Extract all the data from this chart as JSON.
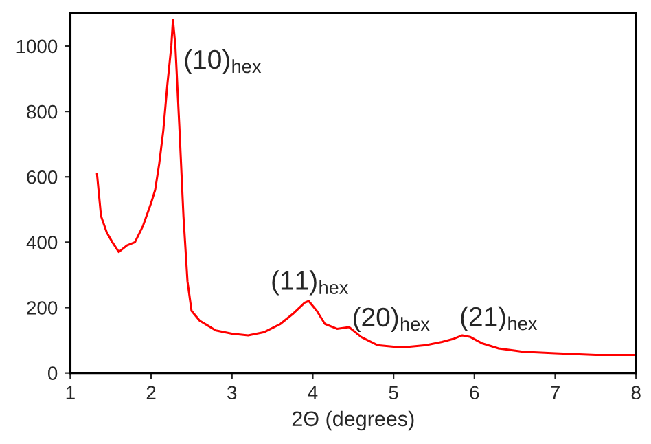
{
  "chart_data": {
    "type": "line",
    "xlabel": "2Θ (degrees)",
    "x": [
      1.33,
      1.38,
      1.45,
      1.52,
      1.6,
      1.7,
      1.8,
      1.9,
      2.0,
      2.05,
      2.1,
      2.15,
      2.2,
      2.25,
      2.27,
      2.3,
      2.35,
      2.4,
      2.45,
      2.5,
      2.6,
      2.7,
      2.8,
      3.0,
      3.2,
      3.4,
      3.6,
      3.75,
      3.9,
      3.95,
      4.05,
      4.15,
      4.3,
      4.45,
      4.6,
      4.8,
      5.0,
      5.2,
      5.4,
      5.6,
      5.75,
      5.85,
      5.95,
      6.1,
      6.3,
      6.6,
      7.0,
      7.5,
      8.0
    ],
    "series": [
      {
        "color": "#ff0000",
        "values": [
          610,
          480,
          430,
          400,
          370,
          390,
          400,
          450,
          520,
          560,
          640,
          740,
          880,
          1000,
          1080,
          1000,
          750,
          480,
          280,
          190,
          160,
          145,
          130,
          120,
          115,
          125,
          150,
          180,
          215,
          220,
          190,
          150,
          135,
          140,
          110,
          85,
          80,
          80,
          85,
          95,
          105,
          115,
          110,
          90,
          75,
          65,
          60,
          55,
          55
        ]
      }
    ],
    "xlim": [
      1,
      8
    ],
    "xticks": [
      1,
      2,
      3,
      4,
      5,
      6,
      7,
      8
    ],
    "ylim": [
      0,
      1100
    ],
    "yticks": [
      0,
      200,
      400,
      600,
      800,
      1000
    ],
    "grid": false,
    "legend": false,
    "marker": "none",
    "line_style": "solid",
    "annotations": [
      {
        "text": "(10)$_{hex}$",
        "x": 2.27,
        "y": 1080
      },
      {
        "text": "(11)$_{hex}$",
        "x": 3.95,
        "y": 220
      },
      {
        "text": "(20)$_{hex}$",
        "x": 4.45,
        "y": 140
      },
      {
        "text": "(21)$_{hex}$",
        "x": 5.85,
        "y": 115
      }
    ]
  }
}
